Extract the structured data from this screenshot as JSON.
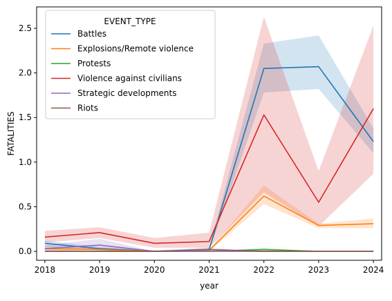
{
  "chart_data": {
    "type": "line",
    "xlabel": "year",
    "ylabel": "FATALITIES",
    "x": [
      2018,
      2019,
      2020,
      2021,
      2022,
      2023,
      2024
    ],
    "xticks": [
      "2018",
      "2019",
      "2020",
      "2021",
      "2022",
      "2023",
      "2024"
    ],
    "xlim": [
      2017.85,
      2024.15
    ],
    "ylim": [
      -0.1,
      2.74
    ],
    "yticks": [
      0.0,
      0.5,
      1.0,
      1.5,
      2.0,
      2.5
    ],
    "ytick_labels": [
      "0.0",
      "0.5",
      "1.0",
      "1.5",
      "2.0",
      "2.5"
    ],
    "grid": false,
    "legend": {
      "title": "EVENT_TYPE",
      "position": "upper-left"
    },
    "series": [
      {
        "name": "Battles",
        "color": "#1f77b4",
        "values": [
          0.09,
          0.03,
          0.0,
          0.02,
          2.05,
          2.07,
          1.23
        ],
        "ci_low": [
          0.05,
          0.01,
          0.0,
          0.0,
          1.78,
          1.82,
          1.1
        ],
        "ci_high": [
          0.12,
          0.05,
          0.01,
          0.04,
          2.33,
          2.42,
          1.38
        ]
      },
      {
        "name": "Explosions/Remote violence",
        "color": "#ff7f0e",
        "values": [
          0.03,
          0.02,
          0.0,
          0.01,
          0.62,
          0.29,
          0.31
        ],
        "ci_low": [
          0.01,
          0.0,
          0.0,
          0.0,
          0.53,
          0.26,
          0.26
        ],
        "ci_high": [
          0.06,
          0.04,
          0.01,
          0.02,
          0.74,
          0.31,
          0.37
        ]
      },
      {
        "name": "Protests",
        "color": "#2ca02c",
        "values": [
          0.0,
          0.0,
          0.0,
          0.0,
          0.02,
          0.0,
          0.0
        ],
        "ci_low": [
          0.0,
          0.0,
          0.0,
          0.0,
          0.0,
          0.0,
          0.0
        ],
        "ci_high": [
          0.0,
          0.0,
          0.0,
          0.0,
          0.04,
          0.0,
          0.0
        ]
      },
      {
        "name": "Violence against civilians",
        "color": "#d62728",
        "values": [
          0.16,
          0.21,
          0.09,
          0.11,
          1.53,
          0.55,
          1.6
        ],
        "ci_low": [
          0.1,
          0.15,
          0.04,
          0.04,
          0.66,
          0.28,
          0.87
        ],
        "ci_high": [
          0.23,
          0.27,
          0.15,
          0.21,
          2.63,
          0.9,
          2.53
        ]
      },
      {
        "name": "Strategic developments",
        "color": "#9467bd",
        "values": [
          0.03,
          0.07,
          0.0,
          0.0,
          0.0,
          0.0,
          0.0
        ],
        "ci_low": [
          0.0,
          0.02,
          0.0,
          0.0,
          0.0,
          0.0,
          0.0
        ],
        "ci_high": [
          0.07,
          0.14,
          0.0,
          0.0,
          0.0,
          0.0,
          0.0
        ]
      },
      {
        "name": "Riots",
        "color": "#8c564b",
        "values": [
          0.0,
          0.0,
          0.0,
          0.02,
          0.0,
          0.0,
          0.0
        ],
        "ci_low": [
          0.0,
          0.0,
          0.0,
          0.0,
          0.0,
          0.0,
          0.0
        ],
        "ci_high": [
          0.0,
          0.0,
          0.0,
          0.04,
          0.0,
          0.0,
          0.0
        ]
      }
    ]
  }
}
